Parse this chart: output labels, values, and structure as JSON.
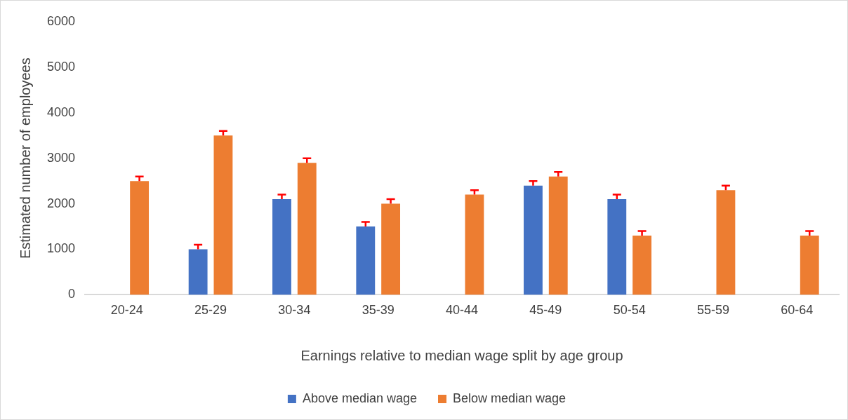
{
  "chart_data": {
    "type": "bar",
    "xlabel": "Earnings relative to median wage split by age group",
    "ylabel": "Estimated number of employees",
    "categories": [
      "20-24",
      "25-29",
      "30-34",
      "35-39",
      "40-44",
      "45-49",
      "50-54",
      "55-59",
      "60-64"
    ],
    "series": [
      {
        "name": "Above median wage",
        "color": "#4472c4",
        "values": [
          null,
          1000,
          2100,
          1500,
          null,
          2400,
          2100,
          null,
          null
        ],
        "errors": [
          null,
          [
            1000,
            1100
          ],
          [
            2100,
            2200
          ],
          [
            1500,
            1600
          ],
          null,
          [
            2400,
            2500
          ],
          [
            2100,
            2200
          ],
          null,
          null
        ]
      },
      {
        "name": "Below median wage",
        "color": "#ed7d31",
        "values": [
          2500,
          3500,
          2900,
          2000,
          2200,
          2600,
          1300,
          2300,
          1300
        ],
        "errors": [
          [
            2500,
            2600
          ],
          [
            3500,
            3600
          ],
          [
            2900,
            3000
          ],
          [
            2000,
            2100
          ],
          [
            2200,
            2300
          ],
          [
            2600,
            2700
          ],
          [
            1300,
            1400
          ],
          [
            2300,
            2400
          ],
          [
            1300,
            1400
          ]
        ]
      }
    ],
    "ylim": [
      0,
      6000
    ],
    "yticks": [
      0,
      1000,
      2000,
      3000,
      4000,
      5000,
      6000
    ],
    "grid": false,
    "legend": "bottom"
  }
}
